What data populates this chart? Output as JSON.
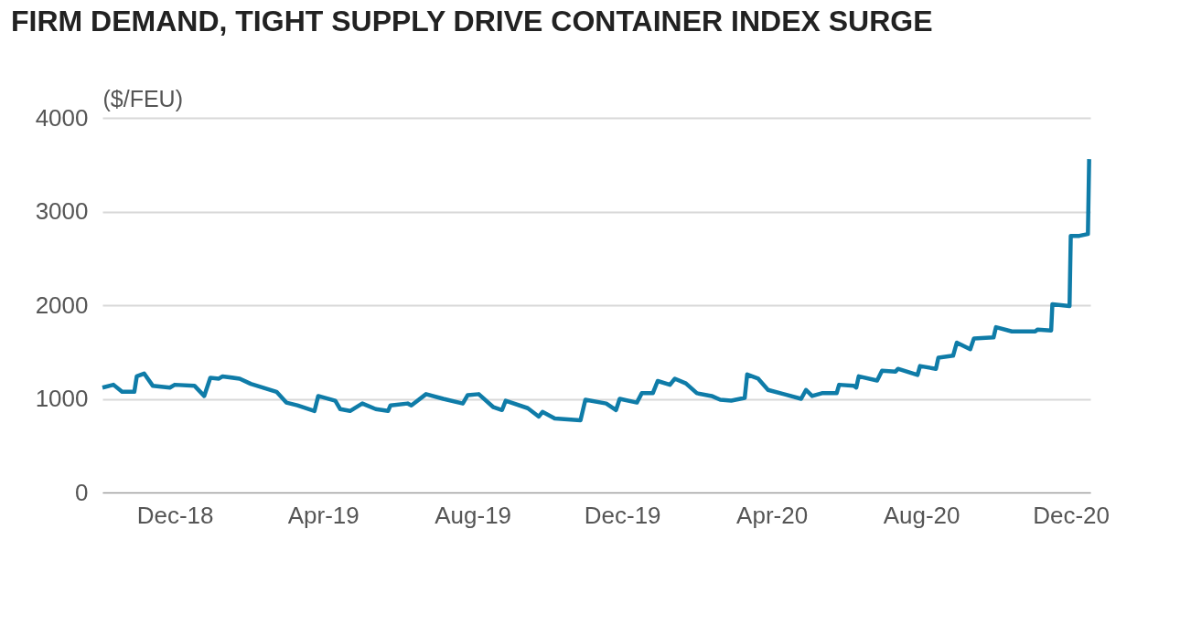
{
  "chart_data": {
    "type": "line",
    "title": "FIRM DEMAND, TIGHT SUPPLY DRIVE CONTAINER INDEX SURGE",
    "ylabel": "($/FEU)",
    "x": [
      "2018-10-03",
      "2018-10-12",
      "2018-10-19",
      "2018-10-29",
      "2018-10-31",
      "2018-11-06",
      "2018-11-13",
      "2018-11-27",
      "2018-12-01",
      "2018-12-17",
      "2018-12-25",
      "2018-12-30",
      "2019-01-06",
      "2019-01-09",
      "2019-01-23",
      "2019-02-01",
      "2019-02-22",
      "2019-03-02",
      "2019-03-11",
      "2019-03-25",
      "2019-03-28",
      "2019-04-11",
      "2019-04-15",
      "2019-04-23",
      "2019-05-03",
      "2019-05-14",
      "2019-05-24",
      "2019-05-26",
      "2019-06-09",
      "2019-06-12",
      "2019-06-24",
      "2019-07-08",
      "2019-07-24",
      "2019-07-28",
      "2019-08-06",
      "2019-08-18",
      "2019-08-25",
      "2019-08-28",
      "2019-09-15",
      "2019-09-24",
      "2019-09-27",
      "2019-10-07",
      "2019-10-28",
      "2019-11-01",
      "2019-11-18",
      "2019-11-26",
      "2019-11-29",
      "2019-12-13",
      "2019-12-17",
      "2019-12-26",
      "2019-12-30",
      "2020-01-09",
      "2020-01-13",
      "2020-01-22",
      "2020-01-31",
      "2020-02-12",
      "2020-02-19",
      "2020-02-28",
      "2020-03-10",
      "2020-03-12",
      "2020-03-21",
      "2020-03-29",
      "2020-04-11",
      "2020-04-25",
      "2020-04-29",
      "2020-05-04",
      "2020-05-12",
      "2020-05-24",
      "2020-05-26",
      "2020-06-07",
      "2020-06-09",
      "2020-06-11",
      "2020-06-26",
      "2020-06-30",
      "2020-07-11",
      "2020-07-13",
      "2020-07-29",
      "2020-07-31",
      "2020-08-13",
      "2020-08-15",
      "2020-08-27",
      "2020-08-30",
      "2020-09-10",
      "2020-09-13",
      "2020-09-29",
      "2020-10-01",
      "2020-10-14",
      "2020-11-02",
      "2020-11-04",
      "2020-11-15",
      "2020-11-16",
      "2020-11-30",
      "2020-12-01",
      "2020-12-08",
      "2020-12-15",
      "2020-12-16"
    ],
    "series": [
      {
        "color": "#0f7ca8",
        "values": [
          1120,
          1150,
          1075,
          1075,
          1240,
          1270,
          1140,
          1120,
          1150,
          1140,
          1030,
          1225,
          1215,
          1240,
          1215,
          1160,
          1075,
          960,
          930,
          870,
          1030,
          980,
          890,
          870,
          950,
          890,
          870,
          930,
          950,
          930,
          1050,
          1000,
          950,
          1040,
          1050,
          910,
          880,
          980,
          900,
          810,
          860,
          790,
          770,
          990,
          950,
          880,
          1000,
          960,
          1060,
          1060,
          1190,
          1150,
          1215,
          1165,
          1060,
          1030,
          990,
          980,
          1010,
          1260,
          1215,
          1095,
          1050,
          1000,
          1095,
          1030,
          1060,
          1060,
          1150,
          1140,
          1120,
          1240,
          1195,
          1300,
          1290,
          1320,
          1255,
          1350,
          1320,
          1440,
          1460,
          1600,
          1530,
          1645,
          1655,
          1765,
          1720,
          1720,
          1740,
          1730,
          2010,
          1990,
          2740,
          2740,
          2760,
          3560
        ]
      }
    ],
    "xlim": [
      "2018-10-03",
      "2020-12-17"
    ],
    "xticks": [
      {
        "value": "2018-12-01",
        "label": "Dec-18"
      },
      {
        "value": "2019-04-01",
        "label": "Apr-19"
      },
      {
        "value": "2019-08-01",
        "label": "Aug-19"
      },
      {
        "value": "2019-12-01",
        "label": "Dec-19"
      },
      {
        "value": "2020-04-01",
        "label": "Apr-20"
      },
      {
        "value": "2020-08-01",
        "label": "Aug-20"
      },
      {
        "value": "2020-12-01",
        "label": "Dec-20"
      }
    ],
    "ylim": [
      0,
      4000
    ],
    "yticks": [
      0,
      1000,
      2000,
      3000,
      4000
    ],
    "grid": "y",
    "line_style": "solid"
  }
}
